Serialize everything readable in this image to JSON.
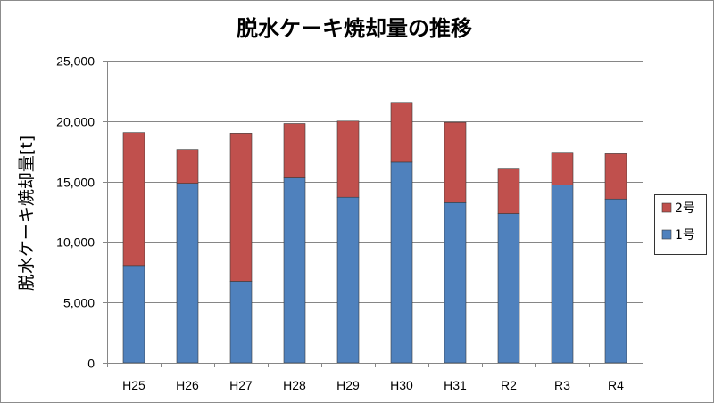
{
  "chart_data": {
    "type": "bar",
    "stacked": true,
    "title": "脱水ケーキ焼却量の推移",
    "xlabel": "",
    "ylabel": "脱水ケーキ焼却量[t]",
    "ylim": [
      0,
      25000
    ],
    "y_ticks": [
      "0",
      "5,000",
      "10,000",
      "15,000",
      "20,000",
      "25,000"
    ],
    "y_tick_values": [
      0,
      5000,
      10000,
      15000,
      20000,
      25000
    ],
    "grid": true,
    "legend_position": "right",
    "categories": [
      "H25",
      "H26",
      "H27",
      "H28",
      "H29",
      "H30",
      "H31",
      "R2",
      "R3",
      "R4"
    ],
    "series": [
      {
        "name": "1号",
        "color": "#4F81BD",
        "values": [
          8050,
          14850,
          6750,
          15300,
          13700,
          16600,
          13250,
          12350,
          14700,
          13550
        ]
      },
      {
        "name": "2号",
        "color": "#C0504D",
        "values": [
          11000,
          2800,
          12250,
          4500,
          6300,
          4950,
          6650,
          3750,
          2650,
          3750
        ]
      }
    ],
    "legend_order": [
      1,
      0
    ]
  },
  "colors": {
    "border": "#8C8C8C",
    "gridline": "#868686",
    "axis": "#868686"
  }
}
